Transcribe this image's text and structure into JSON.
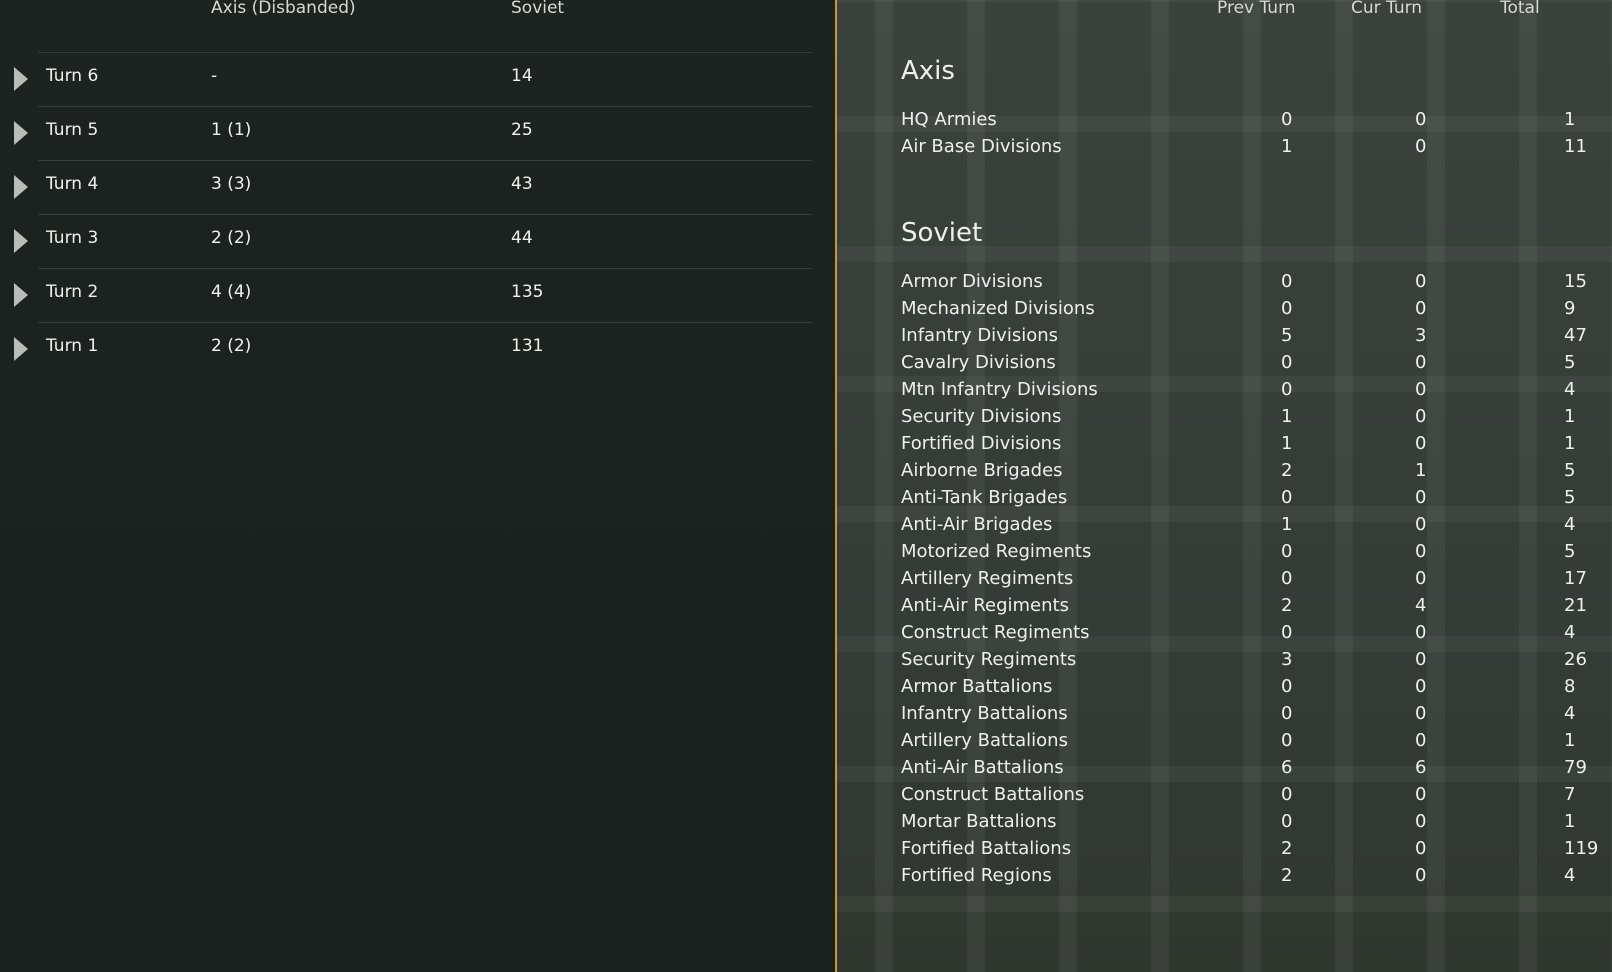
{
  "left": {
    "headers": {
      "axis": "Axis (Disbanded)",
      "soviet": "Soviet"
    },
    "rows": [
      {
        "turn": "Turn 6",
        "axis": "-",
        "soviet": "14"
      },
      {
        "turn": "Turn 5",
        "axis": "1 (1)",
        "soviet": "25"
      },
      {
        "turn": "Turn 4",
        "axis": "3 (3)",
        "soviet": "43"
      },
      {
        "turn": "Turn 3",
        "axis": "2 (2)",
        "soviet": "44"
      },
      {
        "turn": "Turn 2",
        "axis": "4 (4)",
        "soviet": "135"
      },
      {
        "turn": "Turn 1",
        "axis": "2 (2)",
        "soviet": "131"
      }
    ]
  },
  "right": {
    "headers": {
      "prev": "Prev Turn",
      "cur": "Cur Turn",
      "total": "Total"
    },
    "axis": {
      "title": "Axis",
      "rows": [
        {
          "name": "HQ Armies",
          "prev": "0",
          "cur": "0",
          "total": "1"
        },
        {
          "name": "Air Base Divisions",
          "prev": "1",
          "cur": "0",
          "total": "11"
        }
      ]
    },
    "soviet": {
      "title": "Soviet",
      "rows": [
        {
          "name": "Armor Divisions",
          "prev": "0",
          "cur": "0",
          "total": "15"
        },
        {
          "name": "Mechanized Divisions",
          "prev": "0",
          "cur": "0",
          "total": "9"
        },
        {
          "name": "Infantry Divisions",
          "prev": "5",
          "cur": "3",
          "total": "47"
        },
        {
          "name": "Cavalry Divisions",
          "prev": "0",
          "cur": "0",
          "total": "5"
        },
        {
          "name": "Mtn Infantry Divisions",
          "prev": "0",
          "cur": "0",
          "total": "4"
        },
        {
          "name": "Security Divisions",
          "prev": "1",
          "cur": "0",
          "total": "1"
        },
        {
          "name": "Fortified Divisions",
          "prev": "1",
          "cur": "0",
          "total": "1"
        },
        {
          "name": "Airborne Brigades",
          "prev": "2",
          "cur": "1",
          "total": "5"
        },
        {
          "name": "Anti-Tank Brigades",
          "prev": "0",
          "cur": "0",
          "total": "5"
        },
        {
          "name": "Anti-Air Brigades",
          "prev": "1",
          "cur": "0",
          "total": "4"
        },
        {
          "name": "Motorized Regiments",
          "prev": "0",
          "cur": "0",
          "total": "5"
        },
        {
          "name": "Artillery Regiments",
          "prev": "0",
          "cur": "0",
          "total": "17"
        },
        {
          "name": "Anti-Air Regiments",
          "prev": "2",
          "cur": "4",
          "total": "21"
        },
        {
          "name": "Construct Regiments",
          "prev": "0",
          "cur": "0",
          "total": "4"
        },
        {
          "name": "Security Regiments",
          "prev": "3",
          "cur": "0",
          "total": "26"
        },
        {
          "name": "Armor Battalions",
          "prev": "0",
          "cur": "0",
          "total": "8"
        },
        {
          "name": "Infantry Battalions",
          "prev": "0",
          "cur": "0",
          "total": "4"
        },
        {
          "name": "Artillery Battalions",
          "prev": "0",
          "cur": "0",
          "total": "1"
        },
        {
          "name": "Anti-Air Battalions",
          "prev": "6",
          "cur": "6",
          "total": "79"
        },
        {
          "name": "Construct Battalions",
          "prev": "0",
          "cur": "0",
          "total": "7"
        },
        {
          "name": "Mortar Battalions",
          "prev": "0",
          "cur": "0",
          "total": "1"
        },
        {
          "name": "Fortified Battalions",
          "prev": "2",
          "cur": "0",
          "total": "119"
        },
        {
          "name": "Fortified Regions",
          "prev": "2",
          "cur": "0",
          "total": "4"
        }
      ]
    }
  },
  "colors": {
    "divider": "#c79a2e",
    "left_bg": "#1b211f",
    "right_bg": "#39403b"
  },
  "icons": {
    "expand": "triangle-right-icon"
  }
}
